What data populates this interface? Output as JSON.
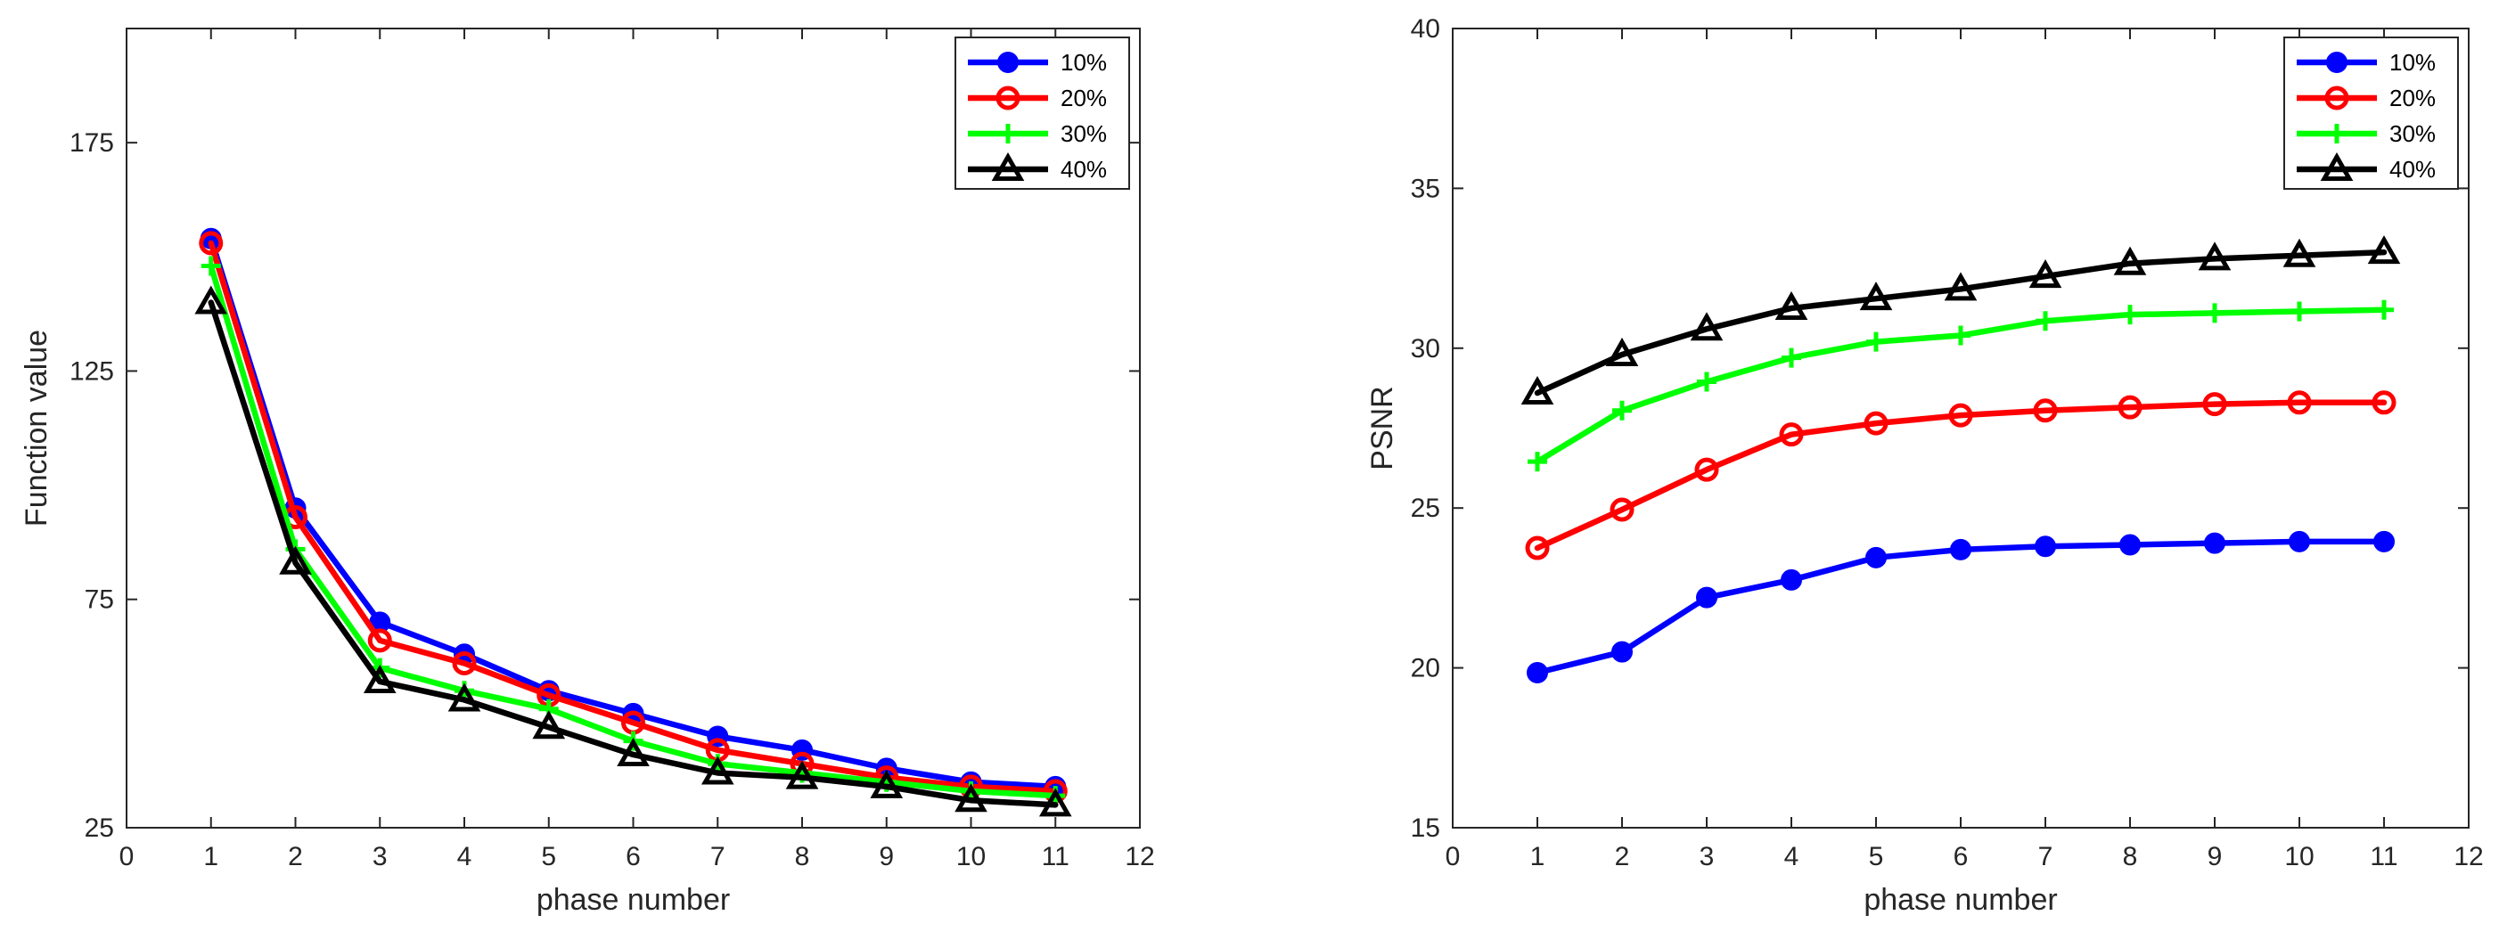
{
  "chart_data": [
    {
      "type": "line",
      "title": "",
      "xlabel": "phase number",
      "ylabel": "Function value",
      "xlim": [
        0,
        12
      ],
      "ylim": [
        25,
        200
      ],
      "xticks": [
        "0",
        "1",
        "2",
        "3",
        "4",
        "5",
        "6",
        "7",
        "8",
        "9",
        "10",
        "11",
        "12"
      ],
      "yticks": [
        "25",
        "75",
        "125",
        "175"
      ],
      "legend_position": "top-right",
      "x": [
        1,
        2,
        3,
        4,
        5,
        6,
        7,
        8,
        9,
        10,
        11
      ],
      "series": [
        {
          "name": "10%",
          "color": "#0000ff",
          "marker": "dot",
          "values": [
            154,
            95,
            70,
            63,
            55,
            50,
            45,
            42,
            38,
            35,
            34
          ]
        },
        {
          "name": "20%",
          "color": "#ff0000",
          "marker": "circle",
          "values": [
            153,
            93,
            66,
            61,
            54,
            48,
            42,
            39,
            36,
            34,
            33
          ]
        },
        {
          "name": "30%",
          "color": "#00ff00",
          "marker": "plus",
          "values": [
            148,
            86,
            60,
            55,
            51,
            44,
            39,
            37,
            35,
            33,
            32
          ]
        },
        {
          "name": "40%",
          "color": "#000000",
          "marker": "triangle",
          "values": [
            140,
            83,
            57,
            53,
            47,
            41,
            37,
            36,
            34,
            31,
            30
          ]
        }
      ]
    },
    {
      "type": "line",
      "title": "",
      "xlabel": "phase number",
      "ylabel": "PSNR",
      "xlim": [
        0,
        12
      ],
      "ylim": [
        15,
        40
      ],
      "xticks": [
        "0",
        "1",
        "2",
        "3",
        "4",
        "5",
        "6",
        "7",
        "8",
        "9",
        "10",
        "11",
        "12"
      ],
      "yticks": [
        "15",
        "20",
        "25",
        "30",
        "35",
        "40"
      ],
      "legend_position": "top-right",
      "x": [
        1,
        2,
        3,
        4,
        5,
        6,
        7,
        8,
        9,
        10,
        11
      ],
      "series": [
        {
          "name": "10%",
          "color": "#0000ff",
          "marker": "dot",
          "values": [
            19.85,
            20.5,
            22.2,
            22.75,
            23.45,
            23.7,
            23.8,
            23.85,
            23.9,
            23.95,
            23.95
          ]
        },
        {
          "name": "20%",
          "color": "#ff0000",
          "marker": "circle",
          "values": [
            23.75,
            24.95,
            26.2,
            27.3,
            27.65,
            27.9,
            28.05,
            28.15,
            28.25,
            28.3,
            28.3
          ]
        },
        {
          "name": "30%",
          "color": "#00ff00",
          "marker": "plus",
          "values": [
            26.45,
            28.05,
            28.95,
            29.7,
            30.2,
            30.4,
            30.85,
            31.05,
            31.1,
            31.15,
            31.2
          ]
        },
        {
          "name": "40%",
          "color": "#000000",
          "marker": "triangle",
          "values": [
            28.6,
            29.8,
            30.6,
            31.25,
            31.55,
            31.85,
            32.25,
            32.65,
            32.8,
            32.9,
            33.0
          ]
        }
      ]
    }
  ]
}
